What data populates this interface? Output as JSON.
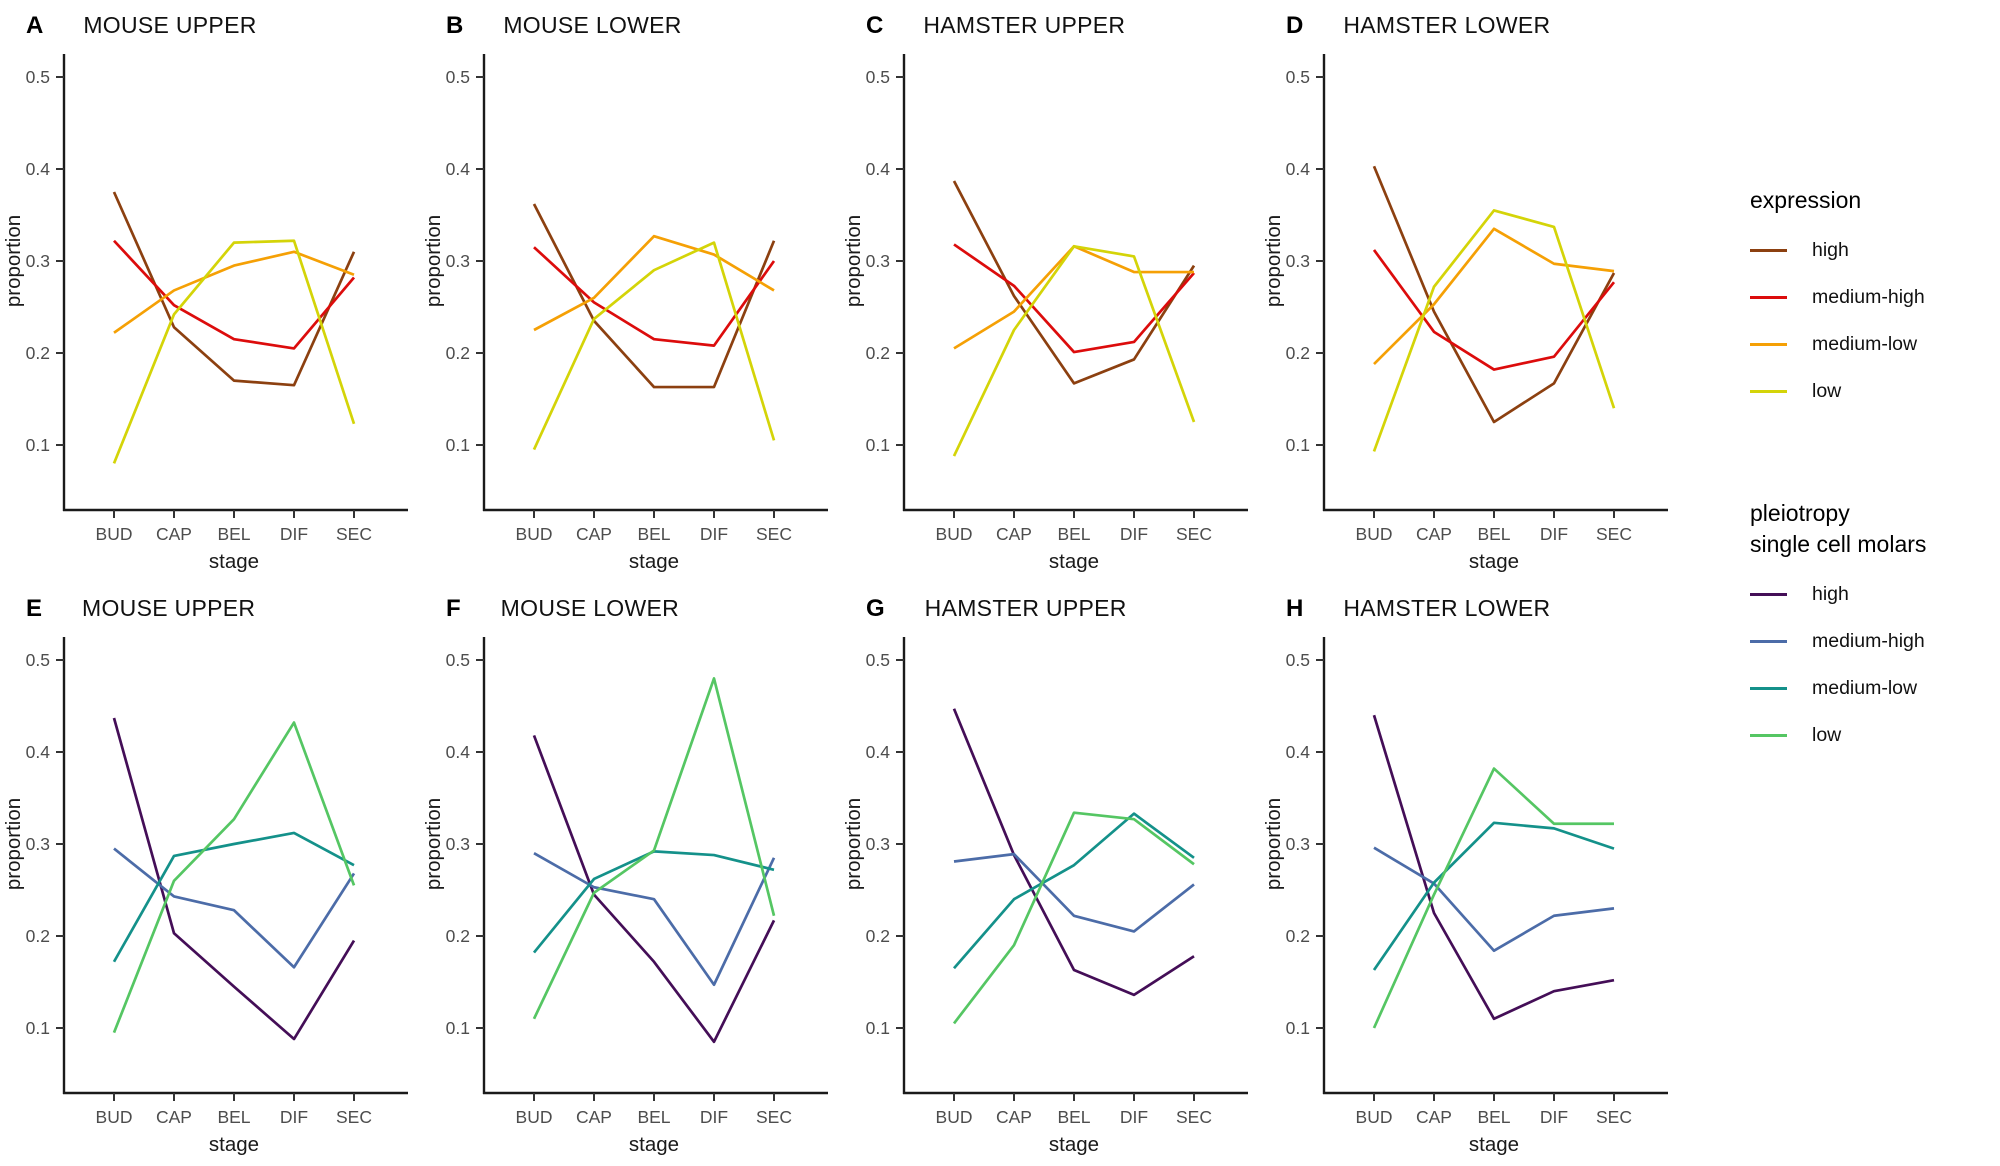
{
  "axes": {
    "x_label": "stage",
    "y_label": "proportion",
    "y_tick_labels": [
      "0.1",
      "0.2",
      "0.3",
      "0.4",
      "0.5"
    ],
    "y_tick_values": [
      0.1,
      0.2,
      0.3,
      0.4,
      0.5
    ]
  },
  "legends": [
    {
      "title_lines": [
        "expression"
      ],
      "items": [
        {
          "label": "high",
          "color": "#8C4010"
        },
        {
          "label": "medium-high",
          "color": "#DC0C0C"
        },
        {
          "label": "medium-low",
          "color": "#F5A005"
        },
        {
          "label": "low",
          "color": "#D4D408"
        }
      ]
    },
    {
      "title_lines": [
        "pleiotropy",
        "single cell molars"
      ],
      "items": [
        {
          "label": "high",
          "color": "#440E57"
        },
        {
          "label": "medium-high",
          "color": "#4C6CA8"
        },
        {
          "label": "medium-low",
          "color": "#14918A"
        },
        {
          "label": "low",
          "color": "#55C663"
        }
      ]
    }
  ],
  "chart_data": {
    "type": "line",
    "categories": [
      "BUD",
      "CAP",
      "BEL",
      "DIF",
      "SEC"
    ],
    "xlabel": "stage",
    "ylabel": "proportion",
    "ylim": [
      0.05,
      0.52
    ],
    "grid": "off",
    "legend_position": "right",
    "panels": [
      {
        "letter": "A",
        "title": "MOUSE UPPER",
        "legend": 0,
        "series": [
          {
            "name": "high",
            "values": [
              0.375,
              0.228,
              0.17,
              0.165,
              0.31
            ]
          },
          {
            "name": "medium-high",
            "values": [
              0.322,
              0.252,
              0.215,
              0.205,
              0.282
            ]
          },
          {
            "name": "medium-low",
            "values": [
              0.222,
              0.268,
              0.295,
              0.31,
              0.285
            ]
          },
          {
            "name": "low",
            "values": [
              0.08,
              0.242,
              0.32,
              0.322,
              0.123
            ]
          }
        ]
      },
      {
        "letter": "B",
        "title": "MOUSE LOWER",
        "legend": 0,
        "series": [
          {
            "name": "high",
            "values": [
              0.362,
              0.235,
              0.163,
              0.163,
              0.322
            ]
          },
          {
            "name": "medium-high",
            "values": [
              0.315,
              0.255,
              0.215,
              0.208,
              0.3
            ]
          },
          {
            "name": "medium-low",
            "values": [
              0.225,
              0.26,
              0.327,
              0.307,
              0.268
            ]
          },
          {
            "name": "low",
            "values": [
              0.095,
              0.237,
              0.29,
              0.32,
              0.105
            ]
          }
        ]
      },
      {
        "letter": "C",
        "title": "HAMSTER UPPER",
        "legend": 0,
        "series": [
          {
            "name": "high",
            "values": [
              0.387,
              0.262,
              0.167,
              0.193,
              0.295
            ]
          },
          {
            "name": "medium-high",
            "values": [
              0.318,
              0.273,
              0.201,
              0.212,
              0.287
            ]
          },
          {
            "name": "medium-low",
            "values": [
              0.205,
              0.245,
              0.316,
              0.288,
              0.288
            ]
          },
          {
            "name": "low",
            "values": [
              0.088,
              0.225,
              0.316,
              0.305,
              0.125
            ]
          }
        ]
      },
      {
        "letter": "D",
        "title": "HAMSTER LOWER",
        "legend": 0,
        "series": [
          {
            "name": "high",
            "values": [
              0.403,
              0.245,
              0.125,
              0.167,
              0.287
            ]
          },
          {
            "name": "medium-high",
            "values": [
              0.312,
              0.223,
              0.182,
              0.196,
              0.277
            ]
          },
          {
            "name": "medium-low",
            "values": [
              0.188,
              0.253,
              0.335,
              0.297,
              0.289
            ]
          },
          {
            "name": "low",
            "values": [
              0.093,
              0.272,
              0.355,
              0.337,
              0.14
            ]
          }
        ]
      },
      {
        "letter": "E",
        "title": "MOUSE UPPER",
        "legend": 1,
        "series": [
          {
            "name": "high",
            "values": [
              0.437,
              0.203,
              0.145,
              0.088,
              0.195
            ]
          },
          {
            "name": "medium-high",
            "values": [
              0.295,
              0.243,
              0.228,
              0.166,
              0.268
            ]
          },
          {
            "name": "medium-low",
            "values": [
              0.172,
              0.287,
              0.3,
              0.312,
              0.277
            ]
          },
          {
            "name": "low",
            "values": [
              0.095,
              0.26,
              0.327,
              0.432,
              0.255
            ]
          }
        ]
      },
      {
        "letter": "F",
        "title": "MOUSE LOWER",
        "legend": 1,
        "series": [
          {
            "name": "high",
            "values": [
              0.418,
              0.245,
              0.172,
              0.085,
              0.217
            ]
          },
          {
            "name": "medium-high",
            "values": [
              0.29,
              0.253,
              0.24,
              0.147,
              0.285
            ]
          },
          {
            "name": "medium-low",
            "values": [
              0.182,
              0.262,
              0.292,
              0.288,
              0.272
            ]
          },
          {
            "name": "low",
            "values": [
              0.11,
              0.247,
              0.293,
              0.48,
              0.222
            ]
          }
        ]
      },
      {
        "letter": "G",
        "title": "HAMSTER UPPER",
        "legend": 1,
        "series": [
          {
            "name": "high",
            "values": [
              0.447,
              0.288,
              0.163,
              0.136,
              0.178
            ]
          },
          {
            "name": "medium-high",
            "values": [
              0.281,
              0.289,
              0.222,
              0.205,
              0.256
            ]
          },
          {
            "name": "medium-low",
            "values": [
              0.165,
              0.24,
              0.277,
              0.333,
              0.285
            ]
          },
          {
            "name": "low",
            "values": [
              0.105,
              0.19,
              0.334,
              0.327,
              0.278
            ]
          }
        ]
      },
      {
        "letter": "H",
        "title": "HAMSTER LOWER",
        "legend": 1,
        "series": [
          {
            "name": "high",
            "values": [
              0.44,
              0.225,
              0.11,
              0.14,
              0.152
            ]
          },
          {
            "name": "medium-high",
            "values": [
              0.296,
              0.257,
              0.184,
              0.222,
              0.23
            ]
          },
          {
            "name": "medium-low",
            "values": [
              0.163,
              0.258,
              0.323,
              0.317,
              0.295
            ]
          },
          {
            "name": "low",
            "values": [
              0.1,
              0.245,
              0.382,
              0.322,
              0.322
            ]
          }
        ]
      }
    ]
  }
}
